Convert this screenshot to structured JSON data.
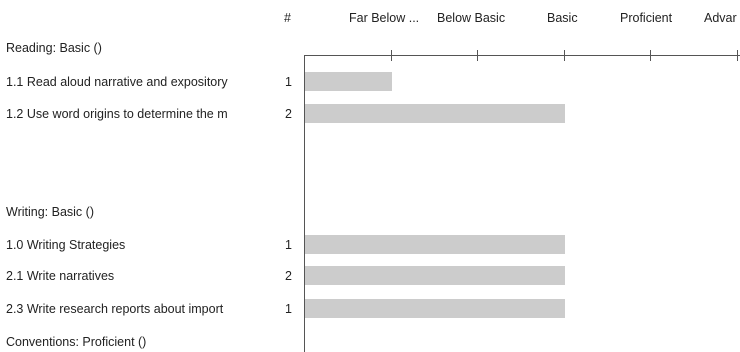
{
  "header": {
    "count_label": "#",
    "levels": [
      "Far Below ...",
      "Below Basic",
      "Basic",
      "Proficient",
      "Advar"
    ]
  },
  "chart_data": {
    "type": "bar",
    "orientation": "horizontal",
    "level_scale": [
      "Far Below ...",
      "Below Basic",
      "Basic",
      "Proficient",
      "Advar"
    ],
    "xlim": [
      0,
      5
    ],
    "bar_color": "#cccccc",
    "axis_color": "#555555",
    "groups": [
      {
        "title": "Reading: Basic ()",
        "rows": [
          {
            "label": "1.1  Read aloud narrative and expository",
            "count": "1",
            "value": 1
          },
          {
            "label": "1.2  Use word origins to determine the m",
            "count": "2",
            "value": 3
          }
        ]
      },
      {
        "title": "Writing: Basic ()",
        "rows": [
          {
            "label": "1.0  Writing Strategies",
            "count": "1",
            "value": 3
          },
          {
            "label": "2.1  Write narratives",
            "count": "2",
            "value": 3
          },
          {
            "label": "2.3  Write research reports about import",
            "count": "1",
            "value": 3
          }
        ]
      },
      {
        "title": "Conventions: Proficient ()",
        "rows": []
      }
    ]
  }
}
